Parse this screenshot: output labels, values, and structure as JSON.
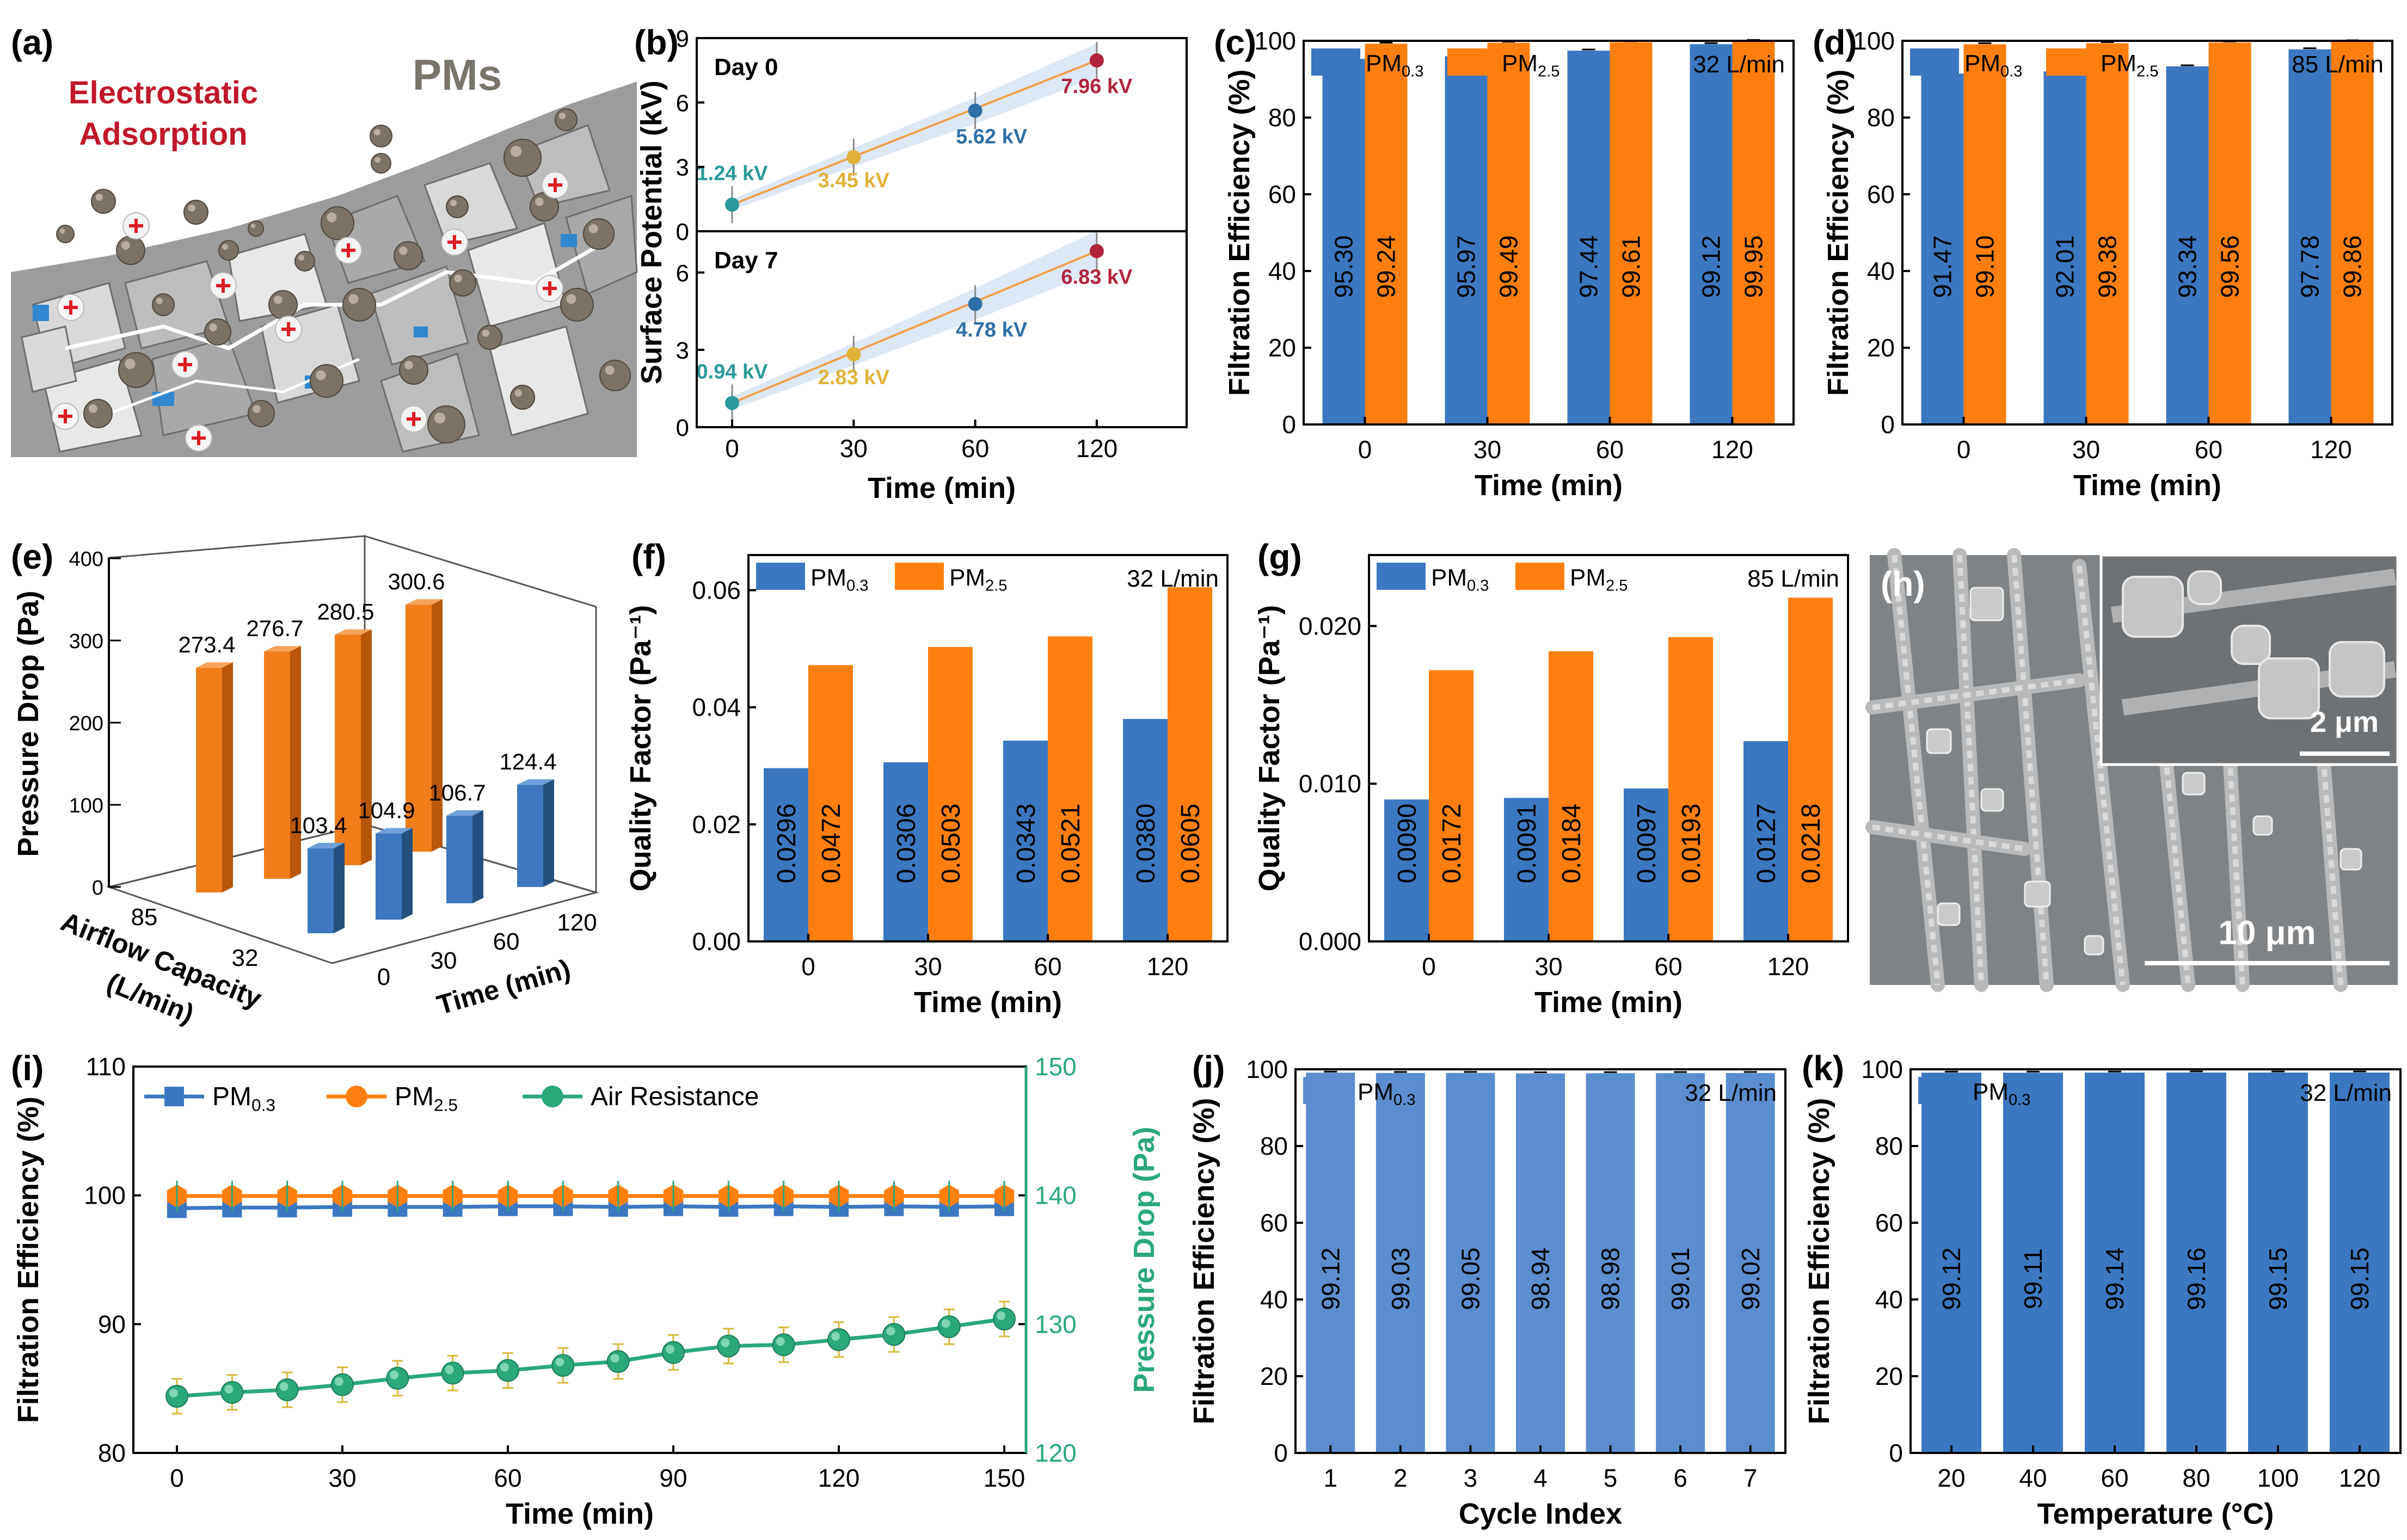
{
  "figure": {
    "colors": {
      "pm03": "#3b78c2",
      "pm25": "#ff7f0e",
      "pm03_light": "#5b8ed0",
      "green": "#2aa879",
      "line_orange": "#f2a04a",
      "band": "#dde8f6",
      "red_text": "#c0182a",
      "gray_text": "#7a756a",
      "sem_bg": "#7f8386"
    },
    "icons": {
      "bar_3d": "orange-and-blue-3d-columns",
      "sem": "sem-micrograph",
      "schematic": "electrostatic-adsorption-illustration"
    }
  },
  "chart_data": [
    {
      "id": "a",
      "type": "illustration",
      "panel_label": "(a)",
      "texts": {
        "electrostatic_line1": "Electrostatic",
        "electrostatic_line2": "Adsorption",
        "pms": "PMs"
      }
    },
    {
      "id": "b",
      "type": "line",
      "panel_label": "(b)",
      "ylabel": "Surface Potential (kV)",
      "xlabel": "Time (min)",
      "categories": [
        "0",
        "30",
        "60",
        "120"
      ],
      "subplots": [
        {
          "title": "Day 0",
          "yticks": [
            "0",
            "3",
            "6",
            "9"
          ],
          "ylim": [
            0,
            9
          ],
          "values": [
            1.24,
            3.45,
            5.62,
            7.96
          ],
          "labels": [
            "1.24 kV",
            "3.45 kV",
            "5.62 kV",
            "7.96 kV"
          ]
        },
        {
          "title": "Day 7",
          "yticks": [
            "0",
            "3",
            "6"
          ],
          "ylim": [
            0,
            7.6
          ],
          "values": [
            0.94,
            2.83,
            4.78,
            6.83
          ],
          "labels": [
            "0.94 kV",
            "2.83 kV",
            "4.78 kV",
            "6.83 kV"
          ]
        }
      ],
      "point_colors": [
        "#2b9a9a",
        "#e0b23a",
        "#2f6fa8",
        "#b0243c"
      ]
    },
    {
      "id": "c",
      "type": "bar",
      "panel_label": "(c)",
      "flow": "32 L/min",
      "ylabel": "Filtration Efficiency (%)",
      "xlabel": "Time (min)",
      "categories": [
        "0",
        "30",
        "60",
        "120"
      ],
      "ylim": [
        0,
        100
      ],
      "yticks": [
        "0",
        "20",
        "40",
        "60",
        "80",
        "100"
      ],
      "legend": [
        "PM0.3",
        "PM2.5"
      ],
      "series": [
        {
          "name": "PM0.3",
          "values": [
            95.3,
            95.97,
            97.44,
            99.12
          ],
          "labels": [
            "95.30",
            "95.97",
            "97.44",
            "99.12"
          ]
        },
        {
          "name": "PM2.5",
          "values": [
            99.24,
            99.49,
            99.61,
            99.95
          ],
          "labels": [
            "99.24",
            "99.49",
            "99.61",
            "99.95"
          ]
        }
      ]
    },
    {
      "id": "d",
      "type": "bar",
      "panel_label": "(d)",
      "flow": "85 L/min",
      "ylabel": "Filtration Efficiency (%)",
      "xlabel": "Time (min)",
      "categories": [
        "0",
        "30",
        "60",
        "120"
      ],
      "ylim": [
        0,
        100
      ],
      "yticks": [
        "0",
        "20",
        "40",
        "60",
        "80",
        "100"
      ],
      "legend": [
        "PM0.3",
        "PM2.5"
      ],
      "series": [
        {
          "name": "PM0.3",
          "values": [
            91.47,
            92.01,
            93.34,
            97.78
          ],
          "labels": [
            "91.47",
            "92.01",
            "93.34",
            "97.78"
          ]
        },
        {
          "name": "PM2.5",
          "values": [
            99.1,
            99.38,
            99.56,
            99.86
          ],
          "labels": [
            "99.10",
            "99.38",
            "99.56",
            "99.86"
          ]
        }
      ]
    },
    {
      "id": "e",
      "type": "bar",
      "panel_label": "(e)",
      "ylabel": "Pressure Drop (Pa)",
      "xlabel": "Time (min)",
      "zlabel_line1": "Airflow Capacity",
      "zlabel_line2": "(L/min)",
      "categories": [
        "0",
        "30",
        "60",
        "120"
      ],
      "depth_categories": [
        "85",
        "32"
      ],
      "yticks": [
        "0",
        "100",
        "200",
        "300",
        "400"
      ],
      "ylim": [
        0,
        400
      ],
      "series": [
        {
          "name": "85",
          "values": [
            273.4,
            276.7,
            280.5,
            300.6
          ],
          "labels": [
            "273.4",
            "276.7",
            "280.5",
            "300.6"
          ]
        },
        {
          "name": "32",
          "values": [
            103.4,
            104.9,
            106.7,
            124.4
          ],
          "labels": [
            "103.4",
            "104.9",
            "106.7",
            "124.4"
          ]
        }
      ]
    },
    {
      "id": "f",
      "type": "bar",
      "panel_label": "(f)",
      "flow": "32 L/min",
      "ylabel": "Quality Factor (Pa⁻¹)",
      "xlabel": "Time (min)",
      "categories": [
        "0",
        "30",
        "60",
        "120"
      ],
      "ylim": [
        0,
        0.066
      ],
      "ytick_values": [
        0,
        0.02,
        0.04,
        0.06
      ],
      "yticks": [
        "0.00",
        "0.02",
        "0.04",
        "0.06"
      ],
      "legend": [
        "PM0.3",
        "PM2.5"
      ],
      "series": [
        {
          "name": "PM0.3",
          "values": [
            0.0296,
            0.0306,
            0.0343,
            0.038
          ],
          "labels": [
            "0.0296",
            "0.0306",
            "0.0343",
            "0.0380"
          ]
        },
        {
          "name": "PM2.5",
          "values": [
            0.0472,
            0.0503,
            0.0521,
            0.0605
          ],
          "labels": [
            "0.0472",
            "0.0503",
            "0.0521",
            "0.0605"
          ]
        }
      ]
    },
    {
      "id": "g",
      "type": "bar",
      "panel_label": "(g)",
      "flow": "85 L/min",
      "ylabel": "Quality Factor (Pa⁻¹)",
      "xlabel": "Time (min)",
      "categories": [
        "0",
        "30",
        "60",
        "120"
      ],
      "ylim": [
        0,
        0.0245
      ],
      "ytick_values": [
        0,
        0.01,
        0.02
      ],
      "yticks": [
        "0.000",
        "0.010",
        "0.020"
      ],
      "legend": [
        "PM0.3",
        "PM2.5"
      ],
      "series": [
        {
          "name": "PM0.3",
          "values": [
            0.009,
            0.0091,
            0.0097,
            0.0127
          ],
          "labels": [
            "0.0090",
            "0.0091",
            "0.0097",
            "0.0127"
          ]
        },
        {
          "name": "PM2.5",
          "values": [
            0.0172,
            0.0184,
            0.0193,
            0.0218
          ],
          "labels": [
            "0.0172",
            "0.0184",
            "0.0193",
            "0.0218"
          ]
        }
      ]
    },
    {
      "id": "h",
      "type": "image",
      "panel_label": "(h)",
      "scale_main": "10 μm",
      "scale_inset": "2 μm"
    },
    {
      "id": "i",
      "type": "line",
      "panel_label": "(i)",
      "ylabel": "Filtration Efficiency (%)",
      "ylabel_right": "Pressure Drop (Pa)",
      "xlabel": "Time (min)",
      "x": [
        0,
        10,
        20,
        30,
        40,
        50,
        60,
        70,
        80,
        90,
        100,
        110,
        120,
        130,
        140,
        150
      ],
      "xticks": [
        "0",
        "30",
        "60",
        "90",
        "120",
        "150"
      ],
      "ylim": [
        80,
        110
      ],
      "yticks": [
        "80",
        "90",
        "100",
        "110"
      ],
      "ylim_right": [
        120,
        150
      ],
      "yticks_right": [
        "120",
        "130",
        "140",
        "150"
      ],
      "legend": [
        "PM0.3",
        "PM2.5",
        "Air Resistance"
      ],
      "series": [
        {
          "name": "PM0.3",
          "axis": "left",
          "values": [
            99.0,
            99.05,
            99.05,
            99.1,
            99.1,
            99.1,
            99.15,
            99.15,
            99.1,
            99.15,
            99.1,
            99.15,
            99.1,
            99.15,
            99.1,
            99.15
          ]
        },
        {
          "name": "PM2.5",
          "axis": "left",
          "values": [
            99.95,
            99.95,
            99.95,
            99.95,
            99.95,
            99.95,
            99.95,
            99.95,
            99.95,
            99.95,
            99.95,
            99.95,
            99.95,
            99.95,
            99.95,
            99.95
          ]
        },
        {
          "name": "Air Resistance",
          "axis": "right",
          "values": [
            124.4,
            124.7,
            124.9,
            125.3,
            125.8,
            126.2,
            126.4,
            126.8,
            127.1,
            127.8,
            128.3,
            128.4,
            128.8,
            129.2,
            129.8,
            130.4
          ]
        }
      ]
    },
    {
      "id": "j",
      "type": "bar",
      "panel_label": "(j)",
      "flow": "32 L/min",
      "ylabel": "Filtration Efficiency (%)",
      "xlabel": "Cycle Index",
      "categories": [
        "1",
        "2",
        "3",
        "4",
        "5",
        "6",
        "7"
      ],
      "ylim": [
        0,
        100
      ],
      "yticks": [
        "0",
        "20",
        "40",
        "60",
        "80",
        "100"
      ],
      "legend": [
        "PM0.3"
      ],
      "series": [
        {
          "name": "PM0.3",
          "values": [
            99.12,
            99.03,
            99.05,
            98.94,
            98.98,
            99.01,
            99.02
          ],
          "labels": [
            "99.12",
            "99.03",
            "99.05",
            "98.94",
            "98.98",
            "99.01",
            "99.02"
          ]
        }
      ]
    },
    {
      "id": "k",
      "type": "bar",
      "panel_label": "(k)",
      "flow": "32 L/min",
      "ylabel": "Filtration Efficiency (%)",
      "xlabel": "Temperature (°C)",
      "categories": [
        "20",
        "40",
        "60",
        "80",
        "100",
        "120"
      ],
      "ylim": [
        0,
        100
      ],
      "yticks": [
        "0",
        "20",
        "40",
        "60",
        "80",
        "100"
      ],
      "legend": [
        "PM0.3"
      ],
      "series": [
        {
          "name": "PM0.3",
          "values": [
            99.12,
            99.11,
            99.14,
            99.16,
            99.15,
            99.15
          ],
          "labels": [
            "99.12",
            "99.11",
            "99.14",
            "99.16",
            "99.15",
            "99.15"
          ]
        }
      ]
    }
  ]
}
